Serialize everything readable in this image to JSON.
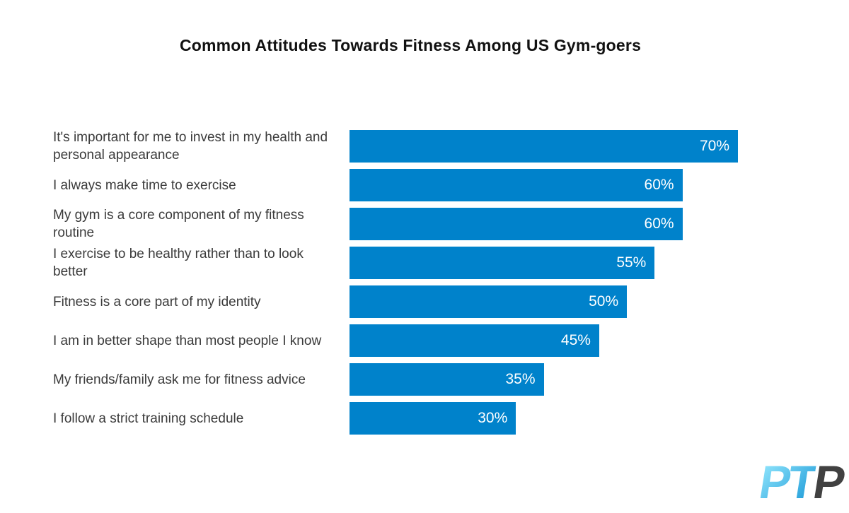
{
  "page": {
    "background_color": "#ffffff"
  },
  "chart_data": {
    "type": "bar",
    "orientation": "horizontal",
    "title": "Common Attitudes Towards Fitness Among US Gym-goers",
    "categories": [
      "It's important for me to invest in my health and personal appearance",
      "I always make time to exercise",
      "My gym is a core component of my fitness routine",
      "I exercise to be healthy rather than to look better",
      "Fitness is a core part of my identity",
      "I am in better shape than most people I know",
      "My friends/family ask me for fitness advice",
      "I follow a strict training schedule"
    ],
    "values": [
      70,
      60,
      60,
      55,
      50,
      45,
      35,
      30
    ],
    "value_labels": [
      "70%",
      "60%",
      "60%",
      "55%",
      "50%",
      "45%",
      "35%",
      "30%"
    ],
    "value_suffix": "%",
    "xlim": [
      0,
      70
    ],
    "grid": false,
    "legend": false,
    "axis_lines": false,
    "bar_color": "#0082cb",
    "value_label_color": "#ffffff",
    "category_label_color": "#3a3a3a",
    "title_color": "#111111"
  },
  "branding": {
    "logo_text": "PTP",
    "logo_primary_letters": "PT",
    "logo_secondary_letter": "P",
    "logo_blue_light": "#8ce2fb",
    "logo_blue_dark": "#2aa3dc",
    "logo_gray": "#414141"
  }
}
